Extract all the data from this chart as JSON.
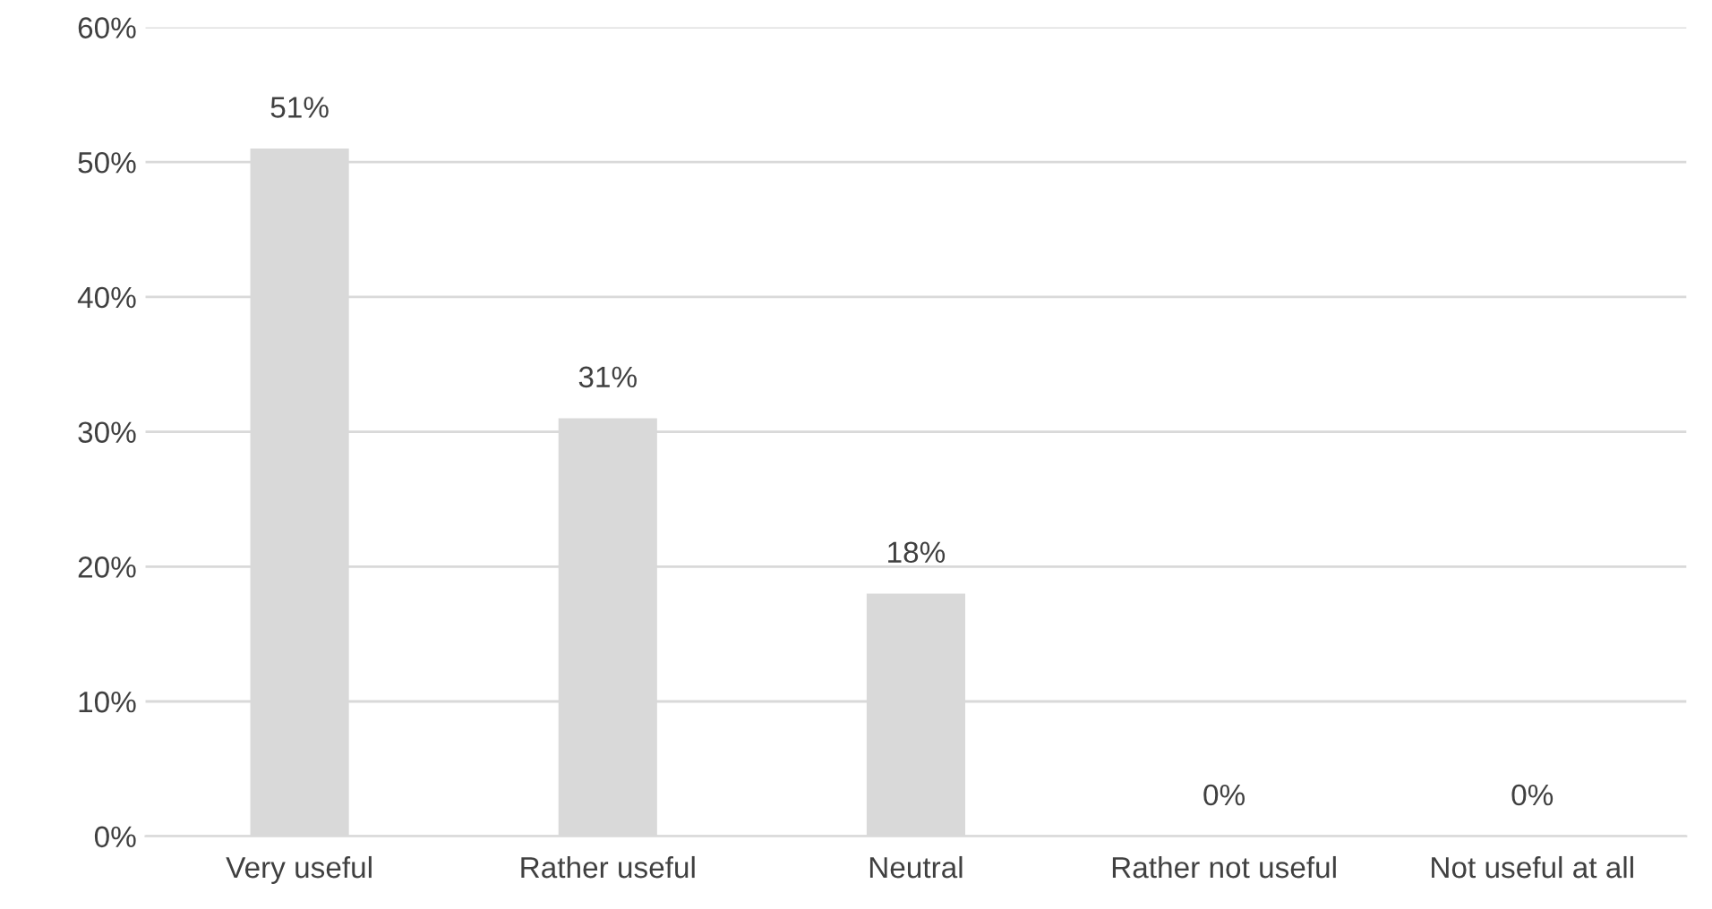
{
  "chart_data": {
    "type": "bar",
    "categories": [
      "Very useful",
      "Rather useful",
      "Neutral",
      "Rather not useful",
      "Not useful at all"
    ],
    "values": [
      51,
      31,
      18,
      0,
      0
    ],
    "value_labels": [
      "51%",
      "31%",
      "18%",
      "0%",
      "0%"
    ],
    "color": "#d9d9d9",
    "ylim": [
      0,
      60
    ],
    "yticks": [
      {
        "value": 0,
        "label": "0%"
      },
      {
        "value": 10,
        "label": "10%"
      },
      {
        "value": 20,
        "label": "20%"
      },
      {
        "value": 30,
        "label": "30%"
      },
      {
        "value": 40,
        "label": "40%"
      },
      {
        "value": 50,
        "label": "50%"
      },
      {
        "value": 60,
        "label": "60%"
      }
    ],
    "grid": "y",
    "legend": false
  }
}
